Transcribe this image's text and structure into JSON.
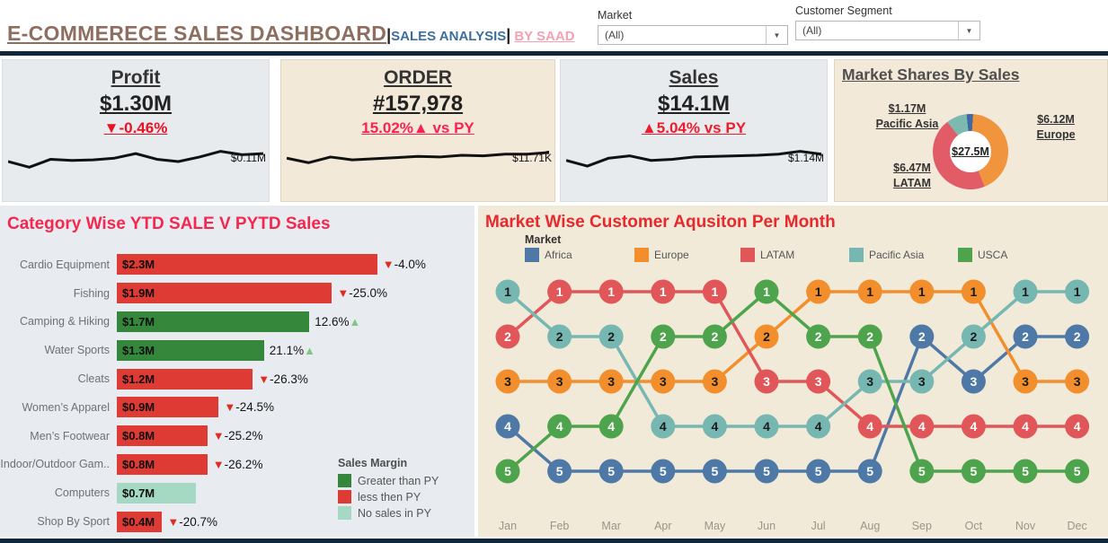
{
  "header": {
    "title": "E-COMMERECE SALES DASHBOARD",
    "sep": "|",
    "subtitle": "SALES ANALYSIS",
    "byline": "BY SAAD",
    "filters": [
      {
        "label": "Market",
        "value": "(All)"
      },
      {
        "label": "Customer Segment",
        "value": "(All)"
      }
    ]
  },
  "kpis": [
    {
      "title": "Profit",
      "value": "$1.30M",
      "delta": "▼-0.46%",
      "delta_color": "#ea1122",
      "spark_label": "$0.11M",
      "spark": [
        15,
        20,
        13,
        14,
        13.5,
        12,
        8,
        13,
        15,
        11,
        6,
        9,
        8
      ],
      "end_dot": false
    },
    {
      "title": "ORDER",
      "value": "#157,978",
      "delta": "15.02%▲  vs PY",
      "delta_color": "#fb2150",
      "spark_label": "$11.71K",
      "spark": [
        12,
        16,
        11,
        13.5,
        12.5,
        11.5,
        10.5,
        11,
        9.5,
        10,
        8.5,
        8.5,
        7
      ],
      "end_dot": true
    },
    {
      "title": "Sales",
      "value": "$14.1M",
      "delta": "▲5.04% vs  PY",
      "delta_color": "#ed1c2c",
      "spark_label": "$1.14M",
      "spark": [
        14,
        19,
        12,
        10,
        14,
        13,
        11,
        10.5,
        10,
        9.5,
        8.5,
        6,
        8.5
      ],
      "end_dot": true
    }
  ],
  "chart_data": [
    {
      "id": "market_shares_donut",
      "type": "pie",
      "title": "Market Shares By Sales",
      "center_label": "$27.5M",
      "from_deg": -6,
      "slices": [
        {
          "label": "Africa",
          "value_label": "",
          "color": "#3f68a5",
          "start_deg": 0,
          "end_deg": 10
        },
        {
          "label": "Europe",
          "value_label": "$6.12M",
          "color": "#f0943d",
          "start_deg": 10,
          "end_deg": 164
        },
        {
          "label": "LATAM",
          "value_label": "$6.47M",
          "color": "#e25c68",
          "start_deg": 164,
          "end_deg": 328
        },
        {
          "label": "Pacific Asia",
          "value_label": "$1.17M",
          "color": "#7cb9ae",
          "start_deg": 328,
          "end_deg": 360
        }
      ]
    },
    {
      "id": "category_bars",
      "type": "bar",
      "title": "Category Wise YTD SALE V PYTD Sales",
      "categories": [
        "Cardio Equipment",
        "Fishing",
        "Camping & Hiking",
        "Water Sports",
        "Cleats",
        "Women’s Apparel",
        "Men’s Footwear",
        "Indoor/Outdoor Gam..",
        "Computers",
        "Shop By Sport"
      ],
      "values": [
        2.3,
        1.9,
        1.7,
        1.3,
        1.2,
        0.9,
        0.8,
        0.8,
        0.7,
        0.4
      ],
      "value_labels": [
        "$2.3M",
        "$1.9M",
        "$1.7M",
        "$1.3M",
        "$1.2M",
        "$0.9M",
        "$0.8M",
        "$0.8M",
        "$0.7M",
        "$0.4M"
      ],
      "deltas": [
        "-4.0%",
        "-25.0%",
        "12.6%",
        "21.1%",
        "-26.3%",
        "-24.5%",
        "-25.2%",
        "-26.2%",
        "",
        "-20.7%"
      ],
      "delta_dirs": [
        "down",
        "down",
        "up",
        "up",
        "down",
        "down",
        "down",
        "down",
        "none",
        "down"
      ],
      "statuses": [
        "less",
        "less",
        "greater",
        "greater",
        "less",
        "less",
        "less",
        "less",
        "none",
        "less"
      ],
      "up_arrow": "▲",
      "down_arrow": "▼",
      "up_arrow_color": "#82c785",
      "down_arrow_color": "#e02b20",
      "legend": {
        "title": "Sales Margin",
        "items": [
          {
            "status": "greater",
            "label": "Greater than PY",
            "color": "#35883b"
          },
          {
            "status": "less",
            "label": "less then PY",
            "color": "#dd3b33"
          },
          {
            "status": "none",
            "label": "No sales in PY",
            "color": "#a6d9c4"
          }
        ]
      }
    },
    {
      "id": "bump",
      "type": "line",
      "title": "Market Wise Customer Aqusiton Per Month",
      "legend_title": "Market",
      "x": [
        "Jan",
        "Feb",
        "Mar",
        "Apr",
        "May",
        "Jun",
        "Jul",
        "Aug",
        "Sep",
        "Oct",
        "Nov",
        "Dec"
      ],
      "y_is_rank": true,
      "series": [
        {
          "name": "Africa",
          "color": "#4e79a7",
          "text_color": "#ffffff",
          "ranks": [
            4,
            5,
            5,
            5,
            5,
            5,
            5,
            5,
            2,
            3,
            2,
            2
          ]
        },
        {
          "name": "Europe",
          "color": "#f28e2b",
          "text_color": "#1a1a1a",
          "ranks": [
            3,
            3,
            3,
            3,
            3,
            2,
            1,
            1,
            1,
            1,
            3,
            3
          ]
        },
        {
          "name": "LATAM",
          "color": "#e15759",
          "text_color": "#ffffff",
          "ranks": [
            2,
            1,
            1,
            1,
            1,
            3,
            3,
            4,
            4,
            4,
            4,
            4
          ]
        },
        {
          "name": "Pacific Asia",
          "color": "#76b7b2",
          "text_color": "#1a1a1a",
          "ranks": [
            1,
            2,
            2,
            4,
            4,
            4,
            4,
            3,
            3,
            2,
            1,
            1
          ]
        },
        {
          "name": "USCA",
          "color": "#4da44d",
          "text_color": "#ffffff",
          "ranks": [
            5,
            4,
            4,
            2,
            2,
            1,
            2,
            2,
            5,
            5,
            5,
            5
          ]
        }
      ]
    }
  ]
}
